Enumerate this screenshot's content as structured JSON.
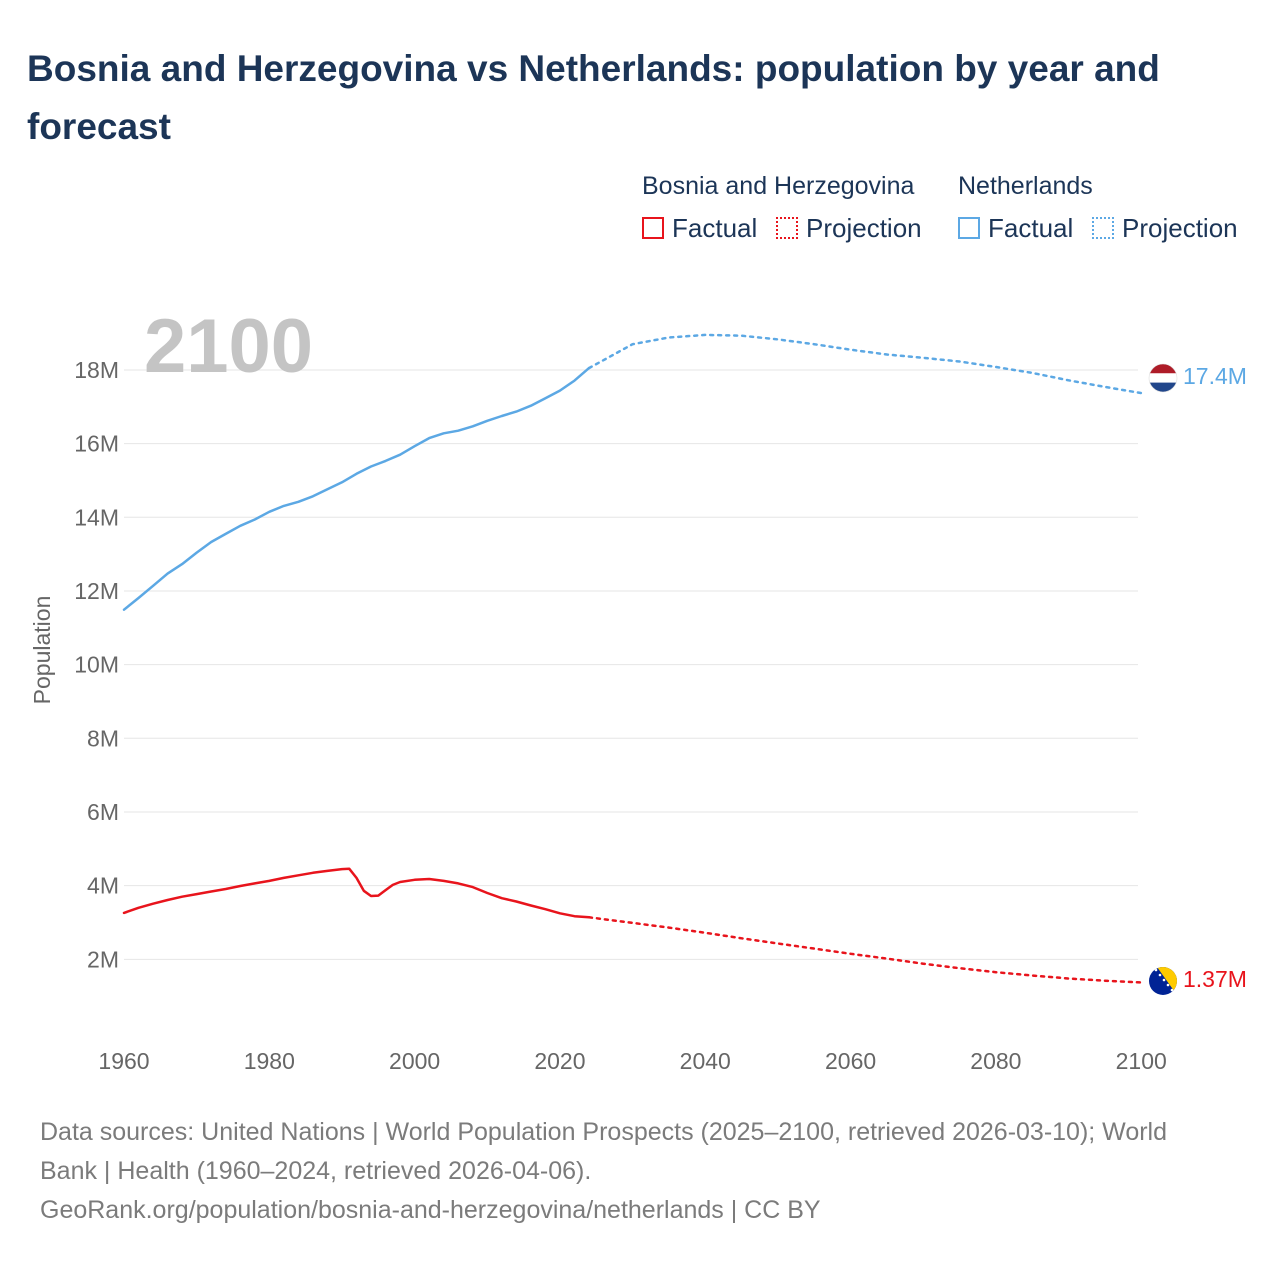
{
  "title": "Bosnia and Herzegovina vs Netherlands: population by year and forecast",
  "legend": {
    "groups": [
      {
        "name": "Bosnia and Herzegovina",
        "factual": "Factual",
        "projection": "Projection",
        "color": "#e8141c"
      },
      {
        "name": "Netherlands",
        "factual": "Factual",
        "projection": "Projection",
        "color": "#5ca8e4"
      }
    ]
  },
  "year_label": "2100",
  "chart_data": {
    "type": "line",
    "title": "Bosnia and Herzegovina vs Netherlands: population by year and forecast",
    "xlabel": "",
    "ylabel": "Population",
    "xlim": [
      1960,
      2103
    ],
    "ylim": [
      0,
      19.6
    ],
    "x_ticks": [
      1960,
      1980,
      2000,
      2020,
      2040,
      2060,
      2080,
      2100
    ],
    "x_tick_labels": [
      "1960",
      "1980",
      "2000",
      "2020",
      "2040",
      "2060",
      "2080",
      "2100"
    ],
    "y_ticks": [
      2,
      4,
      6,
      8,
      10,
      12,
      14,
      16,
      18
    ],
    "y_tick_labels": [
      "2M",
      "4M",
      "6M",
      "8M",
      "10M",
      "12M",
      "14M",
      "16M",
      "18M"
    ],
    "grid": true,
    "units": "millions",
    "series": [
      {
        "name": "Netherlands",
        "color": "#5ca8e4",
        "factual": {
          "x": [
            1960,
            1962,
            1964,
            1966,
            1968,
            1970,
            1972,
            1974,
            1976,
            1978,
            1980,
            1982,
            1984,
            1986,
            1988,
            1990,
            1992,
            1994,
            1996,
            1998,
            2000,
            2002,
            2004,
            2006,
            2008,
            2010,
            2012,
            2014,
            2016,
            2018,
            2020,
            2022,
            2024
          ],
          "y": [
            11.49,
            11.81,
            12.14,
            12.47,
            12.73,
            13.04,
            13.33,
            13.55,
            13.77,
            13.94,
            14.15,
            14.31,
            14.42,
            14.57,
            14.76,
            14.95,
            15.18,
            15.38,
            15.53,
            15.7,
            15.93,
            16.15,
            16.28,
            16.35,
            16.47,
            16.62,
            16.75,
            16.87,
            17.03,
            17.23,
            17.44,
            17.71,
            18.05
          ]
        },
        "projection": {
          "x": [
            2024,
            2030,
            2035,
            2040,
            2045,
            2050,
            2055,
            2060,
            2065,
            2070,
            2075,
            2080,
            2085,
            2090,
            2095,
            2100
          ],
          "y": [
            18.05,
            18.7,
            18.88,
            18.95,
            18.93,
            18.83,
            18.7,
            18.55,
            18.42,
            18.33,
            18.23,
            18.08,
            17.92,
            17.72,
            17.54,
            17.37
          ]
        },
        "end_label": "17.4M"
      },
      {
        "name": "Bosnia and Herzegovina",
        "color": "#e8141c",
        "factual": {
          "x": [
            1960,
            1962,
            1964,
            1966,
            1968,
            1970,
            1972,
            1974,
            1976,
            1978,
            1980,
            1982,
            1984,
            1986,
            1988,
            1990,
            1991,
            1992,
            1993,
            1994,
            1995,
            1996,
            1997,
            1998,
            2000,
            2002,
            2004,
            2006,
            2008,
            2010,
            2012,
            2014,
            2016,
            2018,
            2020,
            2022,
            2024
          ],
          "y": [
            3.26,
            3.4,
            3.51,
            3.61,
            3.7,
            3.77,
            3.84,
            3.91,
            3.99,
            4.06,
            4.13,
            4.21,
            4.28,
            4.35,
            4.4,
            4.45,
            4.46,
            4.21,
            3.86,
            3.72,
            3.73,
            3.88,
            4.02,
            4.1,
            4.16,
            4.18,
            4.13,
            4.06,
            3.96,
            3.8,
            3.66,
            3.57,
            3.46,
            3.36,
            3.25,
            3.17,
            3.14
          ]
        },
        "projection": {
          "x": [
            2024,
            2030,
            2035,
            2040,
            2045,
            2050,
            2055,
            2060,
            2065,
            2070,
            2075,
            2080,
            2085,
            2090,
            2095,
            2100
          ],
          "y": [
            3.14,
            2.99,
            2.86,
            2.72,
            2.57,
            2.43,
            2.29,
            2.15,
            2.02,
            1.88,
            1.76,
            1.65,
            1.56,
            1.48,
            1.42,
            1.37
          ]
        },
        "end_label": "1.37M"
      }
    ]
  },
  "footer": {
    "line1": "Data sources: United Nations | World Population Prospects (2025–2100, retrieved 2026-03-10); World",
    "line2": "Bank | Health (1960–2024, retrieved 2026-04-06).",
    "line3": "GeoRank.org/population/bosnia-and-herzegovina/netherlands | CC BY"
  }
}
